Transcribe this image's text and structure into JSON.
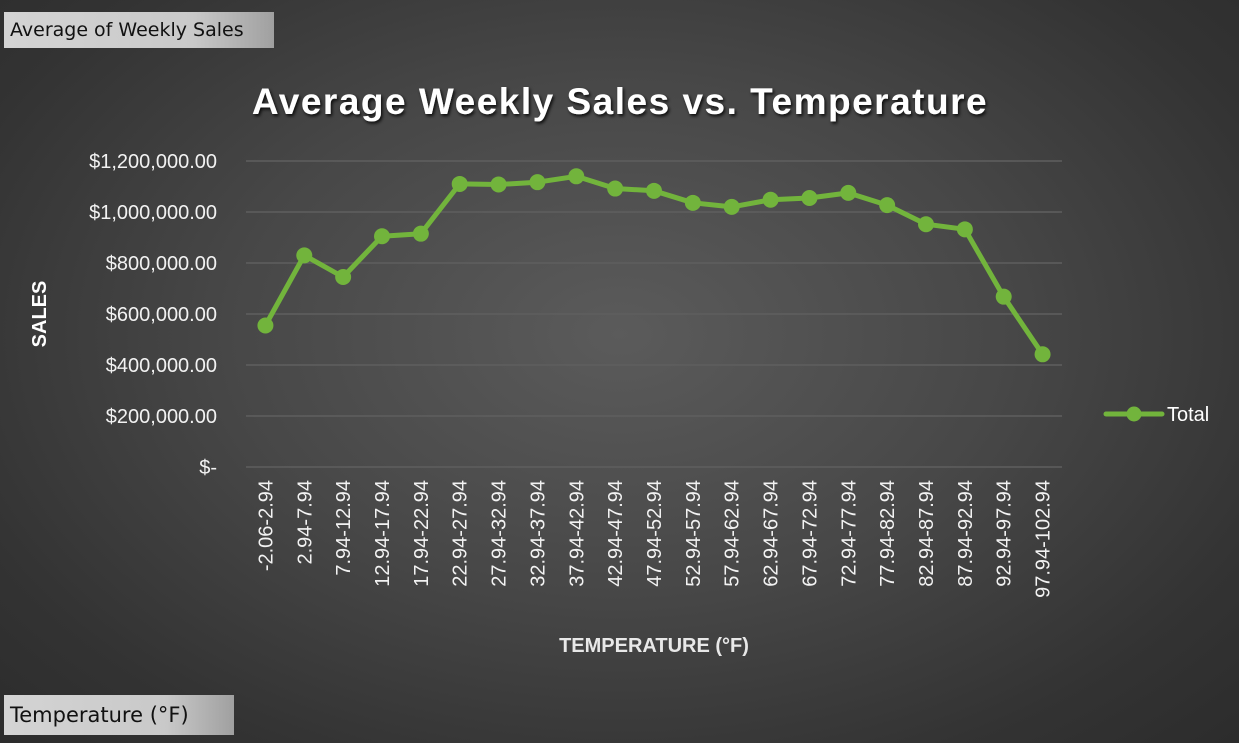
{
  "pivot_buttons": {
    "values_field": "Average of Weekly Sales",
    "axis_field": "Temperature (°F)"
  },
  "colors": {
    "line": "#72b43c",
    "gridline": "#5f5f5f",
    "text": "#f2f2f2"
  },
  "chart_data": {
    "type": "line",
    "title": "Average Weekly Sales vs. Temperature",
    "xlabel": "TEMPERATURE (°F)",
    "ylabel": "SALES",
    "categories": [
      "-2.06-2.94",
      "2.94-7.94",
      "7.94-12.94",
      "12.94-17.94",
      "17.94-22.94",
      "22.94-27.94",
      "27.94-32.94",
      "32.94-37.94",
      "37.94-42.94",
      "42.94-47.94",
      "47.94-52.94",
      "52.94-57.94",
      "57.94-62.94",
      "62.94-67.94",
      "67.94-72.94",
      "72.94-77.94",
      "77.94-82.94",
      "82.94-87.94",
      "87.94-92.94",
      "92.94-97.94",
      "97.94-102.94"
    ],
    "series": [
      {
        "name": "Total",
        "values": [
          555000,
          830000,
          745000,
          905000,
          915000,
          1110000,
          1108000,
          1117000,
          1140000,
          1092000,
          1083000,
          1036000,
          1020000,
          1048000,
          1055000,
          1075000,
          1027000,
          952000,
          932000,
          668000,
          442000
        ]
      }
    ],
    "ylim": [
      0,
      1200000
    ],
    "y_ticks": [
      {
        "value": 1200000,
        "label": "$1,200,000.00"
      },
      {
        "value": 1000000,
        "label": "$1,000,000.00"
      },
      {
        "value": 800000,
        "label": "$800,000.00"
      },
      {
        "value": 600000,
        "label": "$600,000.00"
      },
      {
        "value": 400000,
        "label": "$400,000.00"
      },
      {
        "value": 200000,
        "label": "$200,000.00"
      },
      {
        "value": 0,
        "label": "$-"
      }
    ],
    "grid": true,
    "legend_position": "right",
    "marker": "circle"
  }
}
